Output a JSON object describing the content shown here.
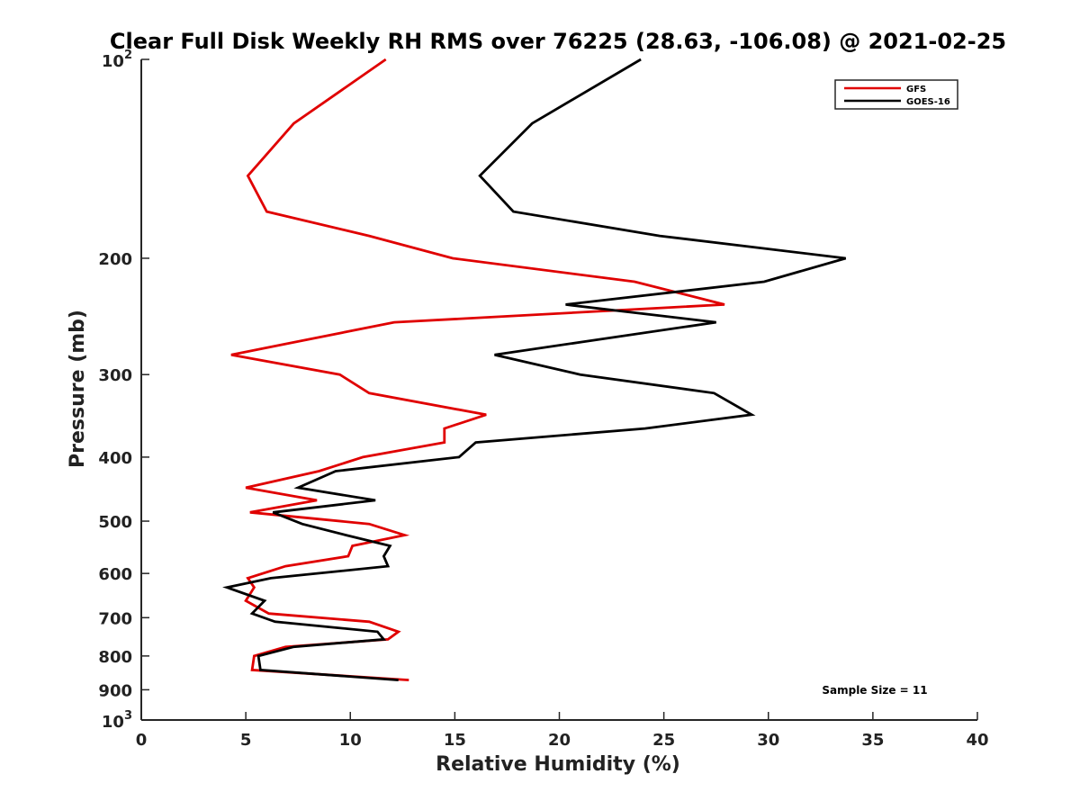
{
  "chart_data": {
    "type": "line",
    "title": "Clear Full Disk Weekly RH RMS over 76225 (28.63, -106.08) @ 2021-02-25",
    "xlabel": "Relative Humidity (%)",
    "ylabel": "Pressure (mb)",
    "xlim": [
      0,
      40
    ],
    "ylim": [
      100,
      1000
    ],
    "y_scale": "log",
    "y_reversed": true,
    "x_ticks": [
      0,
      5,
      10,
      15,
      20,
      25,
      30,
      35,
      40
    ],
    "x_tick_labels": [
      "0",
      "5",
      "10",
      "15",
      "20",
      "25",
      "30",
      "35",
      "40"
    ],
    "y_ticks": [
      200,
      300,
      400,
      500,
      600,
      700,
      800,
      900
    ],
    "y_tick_labels": [
      "200",
      "300",
      "400",
      "500",
      "600",
      "700",
      "800",
      "900"
    ],
    "y_end_ticks": [
      {
        "value": 100,
        "base": "10",
        "exp": "2"
      },
      {
        "value": 1000,
        "base": "10",
        "exp": "3"
      }
    ],
    "grid": false,
    "legend_position": "top-right",
    "annotation": "Sample Size = 11",
    "series": [
      {
        "name": "GFS",
        "color": "#e00000",
        "x": [
          11.7,
          7.3,
          5.1,
          6.0,
          10.9,
          14.9,
          23.6,
          27.9,
          12.1,
          4.3,
          9.5,
          10.9,
          16.5,
          14.5,
          14.5,
          10.6,
          8.5,
          5.0,
          8.4,
          5.2,
          10.9,
          12.6,
          10.1,
          9.9,
          6.9,
          5.1,
          5.4,
          5.0,
          6.1,
          10.9,
          12.3,
          11.8,
          6.9,
          5.4,
          5.3,
          12.8
        ],
        "y": [
          100,
          125,
          150,
          170,
          185,
          200,
          217,
          235,
          250,
          280,
          300,
          320,
          345,
          362,
          380,
          400,
          420,
          445,
          465,
          485,
          505,
          525,
          545,
          565,
          585,
          610,
          630,
          660,
          690,
          710,
          735,
          755,
          775,
          800,
          840,
          870
        ]
      },
      {
        "name": "GOES-16",
        "color": "#000000",
        "x": [
          23.9,
          18.7,
          16.2,
          17.8,
          24.8,
          33.7,
          29.8,
          20.3,
          27.5,
          16.9,
          21.0,
          27.4,
          29.2,
          24.1,
          16.0,
          15.2,
          9.3,
          7.5,
          11.2,
          6.3,
          7.7,
          9.8,
          11.9,
          11.6,
          11.8,
          6.2,
          4.1,
          5.9,
          5.3,
          6.4,
          11.3,
          11.6,
          7.3,
          5.6,
          5.7,
          12.3
        ],
        "y": [
          100,
          125,
          150,
          170,
          185,
          200,
          217,
          235,
          250,
          280,
          300,
          320,
          345,
          362,
          380,
          400,
          420,
          445,
          465,
          485,
          505,
          525,
          545,
          565,
          585,
          610,
          630,
          660,
          690,
          710,
          735,
          755,
          775,
          800,
          840,
          870
        ]
      }
    ]
  }
}
